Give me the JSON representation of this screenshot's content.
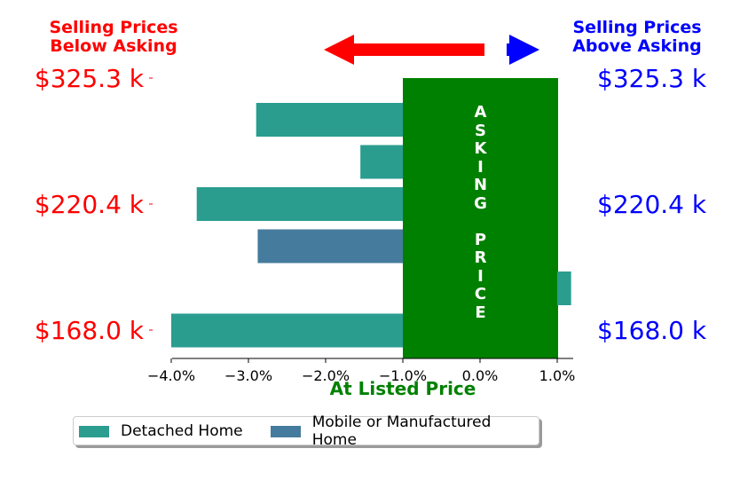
{
  "headers": {
    "left": "Selling Prices\nBelow Asking",
    "right": "Selling Prices\nAbove Asking"
  },
  "price_labels": [
    "$325.3 k",
    "$220.4 k",
    "$168.0 k"
  ],
  "center_label": [
    "A",
    "S",
    "K",
    "I",
    "N",
    "G",
    " ",
    "P",
    "R",
    "I",
    "C",
    "E"
  ],
  "colors": {
    "below": "#ff0000",
    "above": "#0000ff",
    "asking_band": "#008000",
    "detached": "#2a9d8f",
    "mobile": "#457b9d"
  },
  "chart_data": {
    "type": "bar",
    "orientation": "horizontal",
    "xlabel": "At Listed Price",
    "xlim": [
      -4.3,
      1.1
    ],
    "xticks": [
      "−4.0%",
      "−3.0%",
      "−2.0%",
      "−1.0%",
      "0.0%",
      "1.0%"
    ],
    "xtick_values": [
      -4.0,
      -3.0,
      -2.0,
      -1.0,
      0.0,
      1.0
    ],
    "asking_band": [
      -1.0,
      1.0
    ],
    "bars": [
      {
        "series": "Detached Home",
        "value": -2.9
      },
      {
        "series": "Detached Home",
        "value": -1.55
      },
      {
        "series": "Detached Home",
        "value": -3.67
      },
      {
        "series": "Mobile or Manufactured Home",
        "value": -2.88
      },
      {
        "series": "Detached Home",
        "value": 1.18
      },
      {
        "series": "Detached Home",
        "value": -4.0
      }
    ],
    "legend": [
      "Detached Home",
      "Mobile or Manufactured Home"
    ],
    "legend_position": "bottom"
  }
}
